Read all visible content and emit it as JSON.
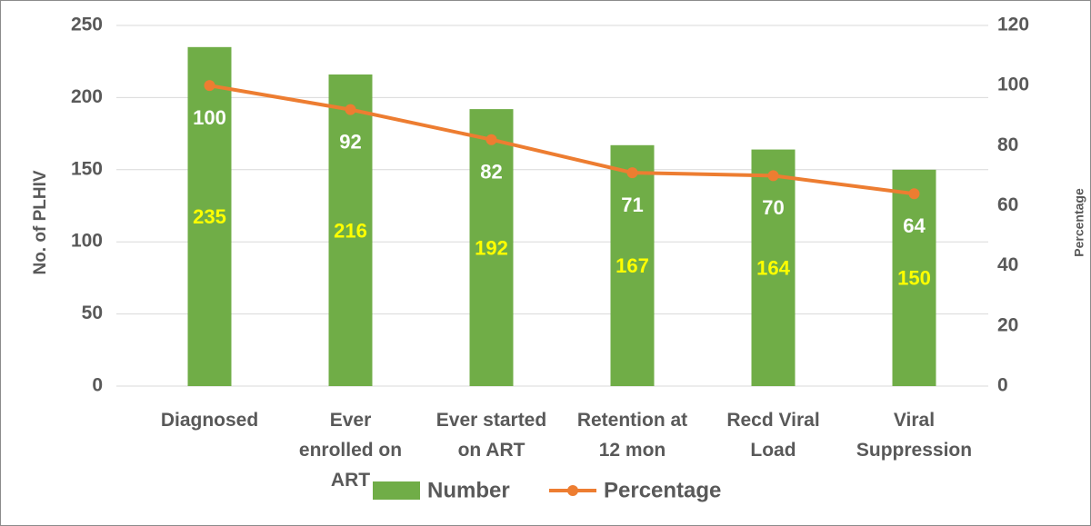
{
  "chart_data": {
    "type": "bar",
    "categories": [
      "Diagnosed",
      "Ever enrolled on ART",
      "Ever started on ART",
      "Retention at 12 mon",
      "Recd Viral Load",
      "Viral Suppression"
    ],
    "series": [
      {
        "name": "Number",
        "type": "bar",
        "color": "#70ad47",
        "label_color": "#ffff00",
        "values": [
          235,
          216,
          192,
          167,
          164,
          150
        ]
      },
      {
        "name": "Percentage",
        "type": "line",
        "axis": "y2",
        "color": "#ed7d31",
        "label_color": "#ffffff",
        "values": [
          100,
          92,
          82,
          71,
          70,
          64
        ]
      }
    ],
    "y_label": "No. of PLHIV",
    "y2_label": "Percentage",
    "ylim": [
      0,
      250
    ],
    "yticks": [
      0,
      50,
      100,
      150,
      200,
      250
    ],
    "y2lim": [
      0,
      120
    ],
    "y2ticks": [
      0,
      20,
      40,
      60,
      80,
      100,
      120
    ],
    "grid": true,
    "legend": "bottom"
  }
}
